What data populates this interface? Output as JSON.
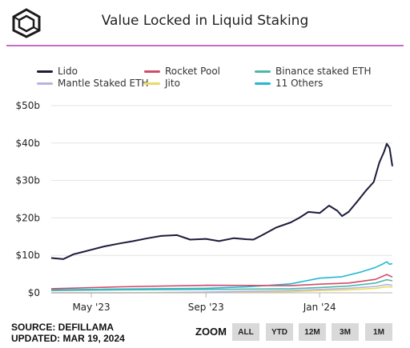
{
  "header": {
    "title": "Value Locked in Liquid Staking"
  },
  "footer": {
    "source": "SOURCE: DEFILLAMA",
    "updated": "UPDATED: MAR 19, 2024"
  },
  "zoom": {
    "label": "ZOOM",
    "buttons": [
      "ALL",
      "YTD",
      "12M",
      "3M",
      "1M"
    ]
  },
  "colors": {
    "accent_rule": "#c56cc8"
  },
  "chart_data": {
    "type": "line",
    "title": "Value Locked in Liquid Staking",
    "xlabel": "",
    "ylabel": "",
    "ylim": [
      0,
      50
    ],
    "yticks": [
      0,
      10,
      20,
      30,
      40,
      50
    ],
    "ytick_labels": [
      "$0",
      "$10b",
      "$20b",
      "$30b",
      "$40b",
      "$50b"
    ],
    "x_range": [
      "2023-03-19",
      "2024-03-19"
    ],
    "xticks": [
      "2023-05-01",
      "2023-09-01",
      "2024-01-01"
    ],
    "xtick_labels": [
      "May '23",
      "Sep '23",
      "Jan '24"
    ],
    "grid": "horizontal",
    "legend_position": "top",
    "series": [
      {
        "name": "Lido",
        "color": "#1b1b3a",
        "x": [
          "2023-03-19",
          "2023-04-01",
          "2023-04-12",
          "2023-04-20",
          "2023-05-01",
          "2023-05-15",
          "2023-06-01",
          "2023-06-15",
          "2023-07-01",
          "2023-07-15",
          "2023-08-01",
          "2023-08-15",
          "2023-09-01",
          "2023-09-15",
          "2023-10-01",
          "2023-10-15",
          "2023-10-22",
          "2023-11-01",
          "2023-11-15",
          "2023-12-01",
          "2023-12-10",
          "2023-12-20",
          "2024-01-01",
          "2024-01-11",
          "2024-01-20",
          "2024-01-25",
          "2024-02-01",
          "2024-02-10",
          "2024-02-20",
          "2024-02-28",
          "2024-03-05",
          "2024-03-10",
          "2024-03-13",
          "2024-03-16",
          "2024-03-19"
        ],
        "values": [
          9.3,
          9.0,
          10.3,
          10.8,
          11.5,
          12.4,
          13.2,
          13.8,
          14.6,
          15.2,
          15.4,
          14.2,
          14.4,
          13.8,
          14.6,
          14.3,
          14.2,
          15.5,
          17.4,
          18.8,
          20.0,
          21.6,
          21.3,
          23.3,
          21.9,
          20.5,
          21.6,
          24.3,
          27.4,
          29.6,
          34.8,
          37.6,
          39.8,
          38.7,
          33.8
        ]
      },
      {
        "name": "Rocket Pool",
        "color": "#d14a6a",
        "x": [
          "2023-03-19",
          "2023-06-01",
          "2023-09-01",
          "2023-12-01",
          "2024-01-01",
          "2024-02-01",
          "2024-03-01",
          "2024-03-13",
          "2024-03-19"
        ],
        "values": [
          1.1,
          1.6,
          2.0,
          1.9,
          2.3,
          2.6,
          3.6,
          4.9,
          4.2
        ]
      },
      {
        "name": "Binance staked ETH",
        "color": "#4fb7a8",
        "x": [
          "2023-03-19",
          "2023-06-01",
          "2023-09-01",
          "2023-12-01",
          "2024-01-01",
          "2024-02-01",
          "2024-03-01",
          "2024-03-13",
          "2024-03-19"
        ],
        "values": [
          0.6,
          0.8,
          0.9,
          1.1,
          1.4,
          1.8,
          2.6,
          3.5,
          3.2
        ]
      },
      {
        "name": "Mantle Staked ETH",
        "color": "#b7b3e0",
        "x": [
          "2023-03-19",
          "2023-06-01",
          "2023-09-01",
          "2023-12-01",
          "2024-01-01",
          "2024-02-01",
          "2024-03-01",
          "2024-03-13",
          "2024-03-19"
        ],
        "values": [
          0.0,
          0.0,
          0.2,
          0.6,
          0.9,
          1.2,
          1.7,
          2.2,
          2.0
        ]
      },
      {
        "name": "Jito",
        "color": "#e8dc62",
        "x": [
          "2023-03-19",
          "2023-06-01",
          "2023-09-01",
          "2023-12-01",
          "2024-01-01",
          "2024-02-01",
          "2024-03-01",
          "2024-03-13",
          "2024-03-19"
        ],
        "values": [
          0.0,
          0.0,
          0.05,
          0.3,
          0.6,
          0.8,
          1.2,
          1.6,
          1.5
        ]
      },
      {
        "name": "11 Others",
        "color": "#22b8d1",
        "x": [
          "2023-03-19",
          "2023-06-01",
          "2023-09-01",
          "2023-10-15",
          "2023-12-01",
          "2024-01-01",
          "2024-01-25",
          "2024-02-15",
          "2024-03-01",
          "2024-03-08",
          "2024-03-13",
          "2024-03-16",
          "2024-03-19"
        ],
        "values": [
          0.8,
          1.0,
          1.2,
          1.6,
          2.4,
          3.9,
          4.3,
          5.6,
          6.8,
          7.6,
          8.3,
          7.6,
          7.8
        ]
      }
    ]
  }
}
